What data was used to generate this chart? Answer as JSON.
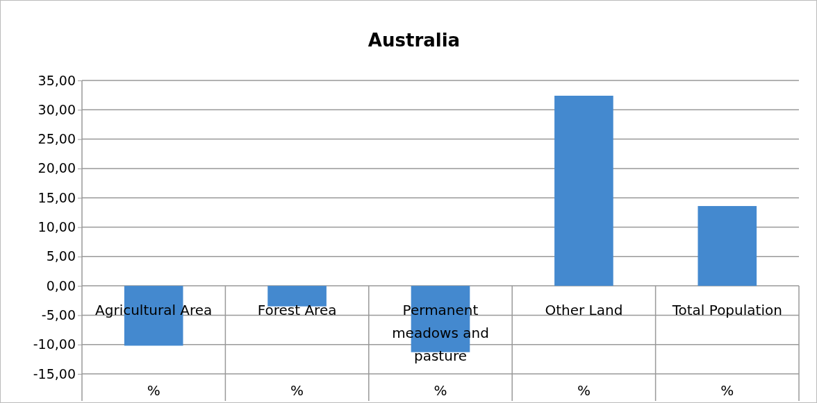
{
  "chart_data": {
    "type": "bar",
    "title": "Australia",
    "categories": [
      "Agricultural Area",
      "Forest Area",
      "Permanent meadows and pasture",
      "Other Land",
      "Total Population"
    ],
    "values": [
      -10.2,
      -3.5,
      -11.3,
      32.4,
      13.6
    ],
    "color": "#4489cf",
    "ylim": [
      -15,
      35
    ],
    "yticks": [
      {
        "value": 35,
        "label": "35,00"
      },
      {
        "value": 30,
        "label": "30,00"
      },
      {
        "value": 25,
        "label": "25,00"
      },
      {
        "value": 20,
        "label": "20,00"
      },
      {
        "value": 15,
        "label": "15,00"
      },
      {
        "value": 10,
        "label": "10,00"
      },
      {
        "value": 5,
        "label": "5,00"
      },
      {
        "value": 0,
        "label": "0,00"
      },
      {
        "value": -5,
        "label": "-5,00"
      },
      {
        "value": -10,
        "label": "-10,00"
      },
      {
        "value": -15,
        "label": "-15,00"
      }
    ],
    "grid": "y",
    "annotations": [
      "%",
      "%",
      "%",
      "%",
      "%"
    ]
  }
}
